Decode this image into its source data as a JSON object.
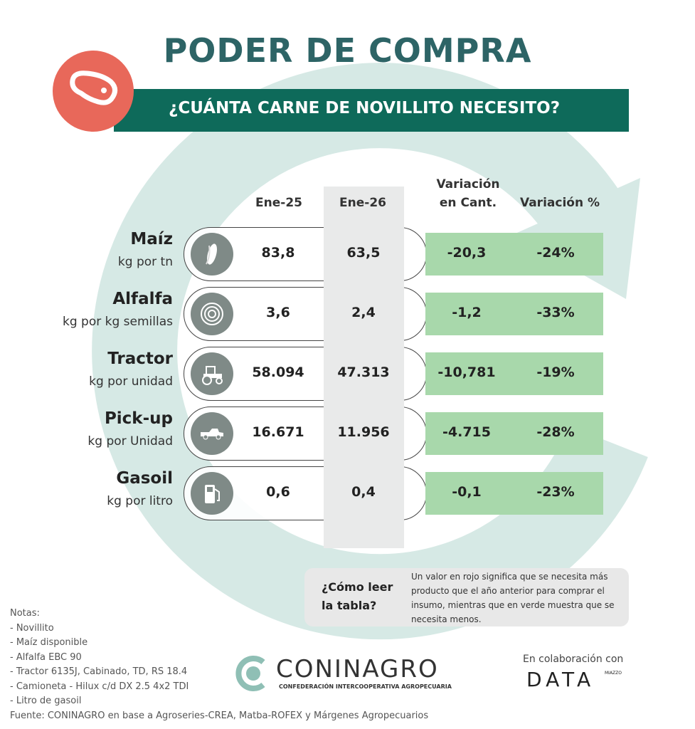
{
  "title": "PODER DE COMPRA",
  "subtitle": "¿CUÁNTA CARNE DE NOVILLITO NECESITO?",
  "colors": {
    "title": "#2d6466",
    "banner": "#0e6a5a",
    "meat_circle": "#e8685a",
    "positive_band": "#a8d8ab",
    "background_ring": "#d6e9e5"
  },
  "columns": {
    "ene25": "Ene-25",
    "ene26": "Ene-26",
    "var_cant_1": "Variación",
    "var_cant_2": "en Cant.",
    "var_pct": "Variación %"
  },
  "rows": [
    {
      "name": "Maíz",
      "unit": "kg por tn",
      "icon": "corn-icon",
      "ene25": "83,8",
      "ene26": "63,5",
      "var_cant": "-20,3",
      "var_pct": "-24%"
    },
    {
      "name": "Alfalfa",
      "unit": "kg por kg semillas",
      "icon": "hay-bale-icon",
      "ene25": "3,6",
      "ene26": "2,4",
      "var_cant": "-1,2",
      "var_pct": "-33%"
    },
    {
      "name": "Tractor",
      "unit": "kg por unidad",
      "icon": "tractor-icon",
      "ene25": "58.094",
      "ene26": "47.313",
      "var_cant": "-10,781",
      "var_pct": "-19%"
    },
    {
      "name": "Pick-up",
      "unit": "kg por Unidad",
      "icon": "pickup-icon",
      "ene25": "16.671",
      "ene26": "11.956",
      "var_cant": "-4.715",
      "var_pct": "-28%"
    },
    {
      "name": "Gasoil",
      "unit": "kg por litro",
      "icon": "fuel-pump-icon",
      "ene25": "0,6",
      "ene26": "0,4",
      "var_cant": "-0,1",
      "var_pct": "-23%"
    }
  ],
  "info": {
    "question": "¿Cómo leer la tabla?",
    "text": "Un valor en rojo significa que se necesita más producto que el año anterior para comprar el insumo, mientras que en verde muestra que se necesita menos."
  },
  "notes": [
    "Notas:",
    "- Novillito",
    "- Maíz disponible",
    "- Alfalfa EBC 90",
    "- Tractor 6135J, Cabinado, TD, RS 18.4",
    "- Camioneta - Hilux c/d DX 2.5 4x2 TDI",
    "- Litro de gasoil"
  ],
  "source": "Fuente: CONINAGRO en base a Agroseries-CREA, Matba-ROFEX y Márgenes Agropecuarios",
  "logo": {
    "name": "CONINAGRO",
    "tagline": "Confederación Intercooperativa Agropecuaria"
  },
  "collab": {
    "label": "En colaboración con",
    "brand": "DATA",
    "brand_sup": "MIAZZO"
  }
}
